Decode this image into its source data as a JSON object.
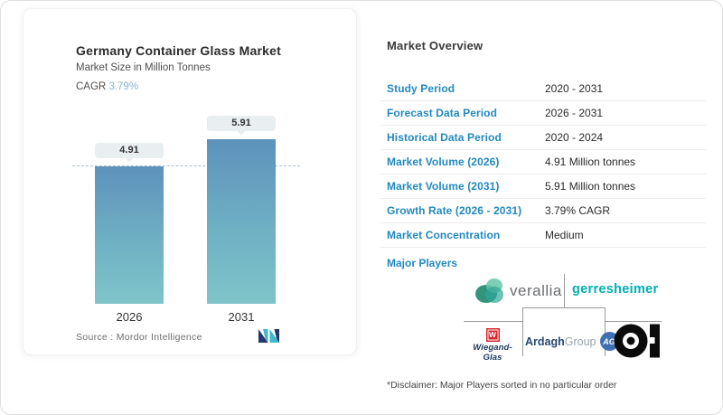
{
  "chart_card": {
    "title": "Germany Container Glass Market",
    "subtitle": "Market Size in Million Tonnes",
    "cagr_label": "CAGR",
    "cagr_value": "3.79%",
    "source_label": "Source :",
    "source_value": "Mordor Intelligence"
  },
  "chart_data": {
    "type": "bar",
    "title": "Germany Container Glass Market",
    "subtitle": "Market Size in Million Tonnes",
    "categories": [
      "2026",
      "2031"
    ],
    "values": [
      4.91,
      5.91
    ],
    "bar_labels": [
      "4.91",
      "5.91"
    ],
    "ylabel": "Million Tonnes",
    "ylim": [
      0,
      7
    ],
    "grid": false,
    "legend": false,
    "dashed_reference_line_at": 4.91,
    "bar_gradient_top": "#5d92bc",
    "bar_gradient_bottom": "#7ec5c9"
  },
  "overview": {
    "title": "Market Overview",
    "rows": [
      {
        "label": "Study Period",
        "value": "2020 - 2031"
      },
      {
        "label": "Forecast Data Period",
        "value": "2026 - 2031"
      },
      {
        "label": "Historical Data Period",
        "value": "2020 - 2024"
      },
      {
        "label": "Market Volume (2026)",
        "value": "4.91 Million tonnes"
      },
      {
        "label": "Market Volume (2031)",
        "value": "5.91 Million tonnes"
      },
      {
        "label": "Growth Rate (2026 - 2031)",
        "value": "3.79% CAGR"
      },
      {
        "label": "Market Concentration",
        "value": "Medium"
      }
    ],
    "major_players_label": "Major Players",
    "players": {
      "verallia": {
        "name": "verallia"
      },
      "gerresheimer": {
        "name": "gerresheimer"
      },
      "wiegand": {
        "badge": "W",
        "name": "Wiegand-Glas"
      },
      "ardagh": {
        "part1": "Ardagh",
        "part2": "Group",
        "badge": "AG"
      },
      "oi": {
        "name": "O-I"
      }
    },
    "disclaimer": "*Disclaimer: Major Players sorted in no particular order"
  },
  "colors": {
    "accent_blue": "#2289be",
    "cagr_blue": "#8ab3cf",
    "bar_top": "#5d92bc",
    "bar_bottom": "#7ec5c9",
    "pill_bg": "#e9eef1",
    "gerresheimer_teal": "#00aeb4",
    "wiegand_red": "#d8232a",
    "ardagh_navy": "#27476e",
    "verallia_green": "#1b8a6e"
  }
}
